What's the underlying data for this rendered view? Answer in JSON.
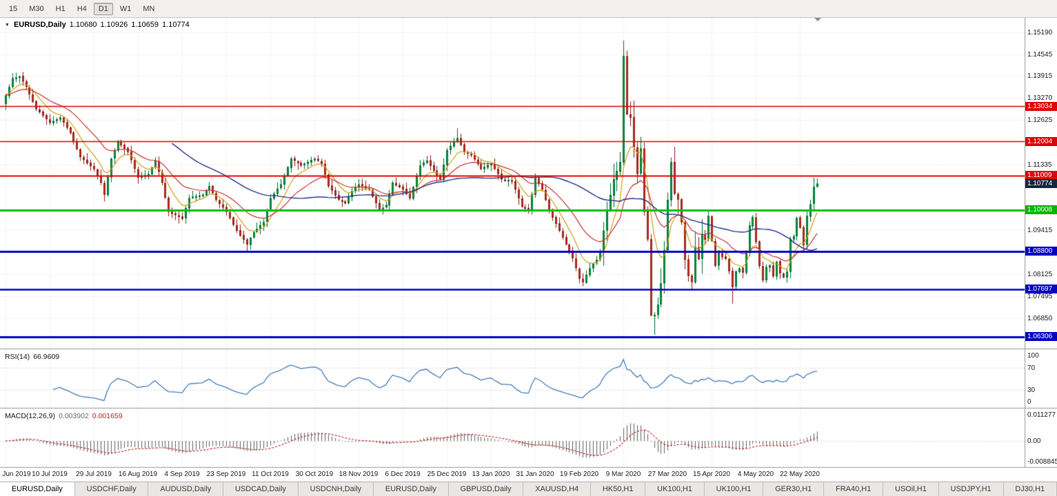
{
  "toolbar": {
    "timeframes": [
      {
        "label": "15",
        "active": false
      },
      {
        "label": "M30",
        "active": false
      },
      {
        "label": "H1",
        "active": false
      },
      {
        "label": "H4",
        "active": false
      },
      {
        "label": "D1",
        "active": true
      },
      {
        "label": "W1",
        "active": false
      },
      {
        "label": "MN",
        "active": false
      }
    ]
  },
  "main_chart": {
    "title": {
      "symbol": "EURUSD,Daily",
      "open": "1.10680",
      "high": "1.10926",
      "low": "1.10659",
      "close": "1.10774"
    },
    "price_axis_labels": [
      "1.15190",
      "1.14545",
      "1.13915",
      "1.13270",
      "1.12625",
      "1.11335",
      "1.09415",
      "1.08125",
      "1.07495",
      "1.06850"
    ],
    "price_badges": [
      {
        "text": "1.13034",
        "price": 1.13034,
        "color": "#e00000",
        "kind": "resistance-line"
      },
      {
        "text": "1.12004",
        "price": 1.12004,
        "color": "#e00000",
        "kind": "resistance-line"
      },
      {
        "text": "1.11009",
        "price": 1.11009,
        "color": "#e00000",
        "kind": "resistance-line"
      },
      {
        "text": "1.10774",
        "price": 1.10774,
        "color": "#15283d",
        "kind": "current-price"
      },
      {
        "text": "1.10008",
        "price": 1.10008,
        "color": "#00b400",
        "kind": "support-line"
      },
      {
        "text": "1.08800",
        "price": 1.088,
        "color": "#0000c0",
        "kind": "support-line"
      },
      {
        "text": "1.07697",
        "price": 1.07697,
        "color": "#0000c0",
        "kind": "support-line"
      },
      {
        "text": "1.06306",
        "price": 1.06306,
        "color": "#0000c0",
        "kind": "support-line"
      }
    ]
  },
  "rsi_panel": {
    "label": "RSI(14)",
    "value": "66.9609",
    "line_color": "#4a7fbb",
    "axis_labels": [
      {
        "text": "100",
        "v": 100
      },
      {
        "text": "70",
        "v": 70
      },
      {
        "text": "30",
        "v": 30
      },
      {
        "text": "0",
        "v": 0
      }
    ],
    "guide_levels": [
      70,
      30
    ]
  },
  "macd_panel": {
    "label": "MACD(12,26,9)",
    "macd_value": "0.003902",
    "signal_value": "0.001659",
    "histogram_color": "#666666",
    "signal_color": "#c22222",
    "axis_labels": [
      {
        "text": "0.011277",
        "v": 0.011277
      },
      {
        "text": "0.00",
        "v": 0
      },
      {
        "text": "-0.008845",
        "v": -0.008845
      }
    ]
  },
  "date_axis": {
    "bars_per_tick": 13,
    "ticks": [
      "21 Jun 2019",
      "10 Jul 2019",
      "29 Jul 2019",
      "16 Aug 2019",
      "4 Sep 2019",
      "23 Sep 2019",
      "11 Oct 2019",
      "30 Oct 2019",
      "18 Nov 2019",
      "6 Dec 2019",
      "25 Dec 2019",
      "13 Jan 2020",
      "31 Jan 2020",
      "19 Feb 2020",
      "9 Mar 2020",
      "27 Mar 2020",
      "15 Apr 2020",
      "4 May 2020",
      "22 May 2020"
    ]
  },
  "tabbar": {
    "tabs": [
      {
        "label": "EURUSD,Daily",
        "active": true
      },
      {
        "label": "USDCHF,Daily",
        "active": false
      },
      {
        "label": "AUDUSD,Daily",
        "active": false
      },
      {
        "label": "USDCAD,Daily",
        "active": false
      },
      {
        "label": "USDCNH,Daily",
        "active": false
      },
      {
        "label": "EURUSD,Daily",
        "active": false
      },
      {
        "label": "GBPUSD,Daily",
        "active": false
      },
      {
        "label": "XAUUSD,H4",
        "active": false
      },
      {
        "label": "HK50,H1",
        "active": false
      },
      {
        "label": "UK100,H1",
        "active": false
      },
      {
        "label": "UK100,H1",
        "active": false
      },
      {
        "label": "GER30,H1",
        "active": false
      },
      {
        "label": "FRA40,H1",
        "active": false
      },
      {
        "label": "USOil,H1",
        "active": false
      },
      {
        "label": "USDJPY,H1",
        "active": false
      },
      {
        "label": "DJ30,H1",
        "active": false
      }
    ]
  },
  "chart_data": {
    "type": "candlestick",
    "symbol": "EURUSD",
    "timeframe": "Daily",
    "bars": 240,
    "seed": 20200529,
    "date_range": [
      "21 Jun 2019",
      "29 May 2020"
    ],
    "price_axis": {
      "max": 1.1553,
      "min": 1.06
    },
    "last_bar": {
      "open": 1.1068,
      "high": 1.10926,
      "low": 1.10659,
      "close": 1.10774
    },
    "horizontal_lines": [
      {
        "price": 1.13034,
        "color": "#e00000",
        "width": 1.5
      },
      {
        "price": 1.12004,
        "color": "#e00000",
        "width": 1.5
      },
      {
        "price": 1.11009,
        "color": "#e00000",
        "width": 2
      },
      {
        "price": 1.10008,
        "color": "#00c000",
        "width": 3
      },
      {
        "price": 1.088,
        "color": "#0000c8",
        "width": 3
      },
      {
        "price": 1.07697,
        "color": "#0000c8",
        "width": 2.5
      },
      {
        "price": 1.06306,
        "color": "#0000c8",
        "width": 3
      }
    ],
    "colors": {
      "bull": "#00a94f",
      "bull_border": "#00702f",
      "bear": "#e23a2e",
      "bear_border": "#8e1f17",
      "background": "#ffffff",
      "grid": "#dcdcdc"
    },
    "moving_averages": [
      {
        "type": "ema",
        "period": 8,
        "color": "#d4a017",
        "width": 1.2
      },
      {
        "type": "ema",
        "period": 21,
        "color": "#cc3333",
        "width": 1.2
      },
      {
        "type": "sma",
        "period": 50,
        "color": "#26318c",
        "width": 1.4
      }
    ],
    "indicators": [
      {
        "name": "RSI",
        "period": 14,
        "last_value": 66.9609
      },
      {
        "name": "MACD",
        "fast": 12,
        "slow": 26,
        "signal": 9,
        "last_macd": 0.003902,
        "last_signal": 0.001659
      }
    ],
    "close_path_anchors": [
      [
        0,
        1.1335
      ],
      [
        2,
        1.1385
      ],
      [
        4,
        1.139
      ],
      [
        6,
        1.136
      ],
      [
        9,
        1.1295
      ],
      [
        13,
        1.1255
      ],
      [
        16,
        1.127
      ],
      [
        19,
        1.1225
      ],
      [
        22,
        1.1155
      ],
      [
        26,
        1.112
      ],
      [
        28,
        1.108
      ],
      [
        29,
        1.1045
      ],
      [
        31,
        1.115
      ],
      [
        33,
        1.12
      ],
      [
        36,
        1.117
      ],
      [
        39,
        1.1095
      ],
      [
        42,
        1.1105
      ],
      [
        44,
        1.1145
      ],
      [
        46,
        1.108
      ],
      [
        48,
        1.0995
      ],
      [
        52,
        1.0975
      ],
      [
        54,
        1.1035
      ],
      [
        58,
        1.1045
      ],
      [
        60,
        1.107
      ],
      [
        62,
        1.103
      ],
      [
        65,
        1.0995
      ],
      [
        68,
        1.094
      ],
      [
        71,
        1.09
      ],
      [
        73,
        1.0935
      ],
      [
        76,
        1.0965
      ],
      [
        78,
        1.1035
      ],
      [
        81,
        1.1075
      ],
      [
        84,
        1.115
      ],
      [
        87,
        1.113
      ],
      [
        91,
        1.115
      ],
      [
        93,
        1.1135
      ],
      [
        95,
        1.107
      ],
      [
        98,
        1.103
      ],
      [
        100,
        1.102
      ],
      [
        102,
        1.1055
      ],
      [
        104,
        1.1075
      ],
      [
        107,
        1.106
      ],
      [
        110,
        1.1
      ],
      [
        112,
        1.1015
      ],
      [
        114,
        1.108
      ],
      [
        117,
        1.106
      ],
      [
        119,
        1.1035
      ],
      [
        122,
        1.113
      ],
      [
        124,
        1.1145
      ],
      [
        126,
        1.1115
      ],
      [
        128,
        1.109
      ],
      [
        130,
        1.1175
      ],
      [
        133,
        1.121
      ],
      [
        135,
        1.117
      ],
      [
        137,
        1.116
      ],
      [
        140,
        1.112
      ],
      [
        143,
        1.1135
      ],
      [
        146,
        1.109
      ],
      [
        149,
        1.1085
      ],
      [
        152,
        1.101
      ],
      [
        154,
        1.1
      ],
      [
        156,
        1.1093
      ],
      [
        158,
        1.106
      ],
      [
        160,
        1.1
      ],
      [
        162,
        1.096
      ],
      [
        165,
        1.09
      ],
      [
        167,
        1.086
      ],
      [
        169,
        1.08
      ],
      [
        170,
        1.079
      ],
      [
        172,
        1.083
      ],
      [
        174,
        1.0855
      ],
      [
        175,
        1.088
      ],
      [
        177,
        1.1
      ],
      [
        179,
        1.109
      ],
      [
        181,
        1.114
      ],
      [
        182,
        1.145
      ],
      [
        183,
        1.128
      ],
      [
        184,
        1.127
      ],
      [
        185,
        1.1184
      ],
      [
        186,
        1.1106
      ],
      [
        187,
        1.118
      ],
      [
        188,
        1.0995
      ],
      [
        189,
        1.0915
      ],
      [
        190,
        1.0692
      ],
      [
        191,
        1.0694
      ],
      [
        192,
        1.0724
      ],
      [
        193,
        1.0786
      ],
      [
        194,
        1.0883
      ],
      [
        195,
        1.103
      ],
      [
        196,
        1.114
      ],
      [
        197,
        1.1048
      ],
      [
        198,
        1.1031
      ],
      [
        199,
        1.0965
      ],
      [
        200,
        1.0855
      ],
      [
        201,
        1.0808
      ],
      [
        202,
        1.079
      ],
      [
        203,
        1.0893
      ],
      [
        204,
        1.0857
      ],
      [
        205,
        1.093
      ],
      [
        206,
        1.0914
      ],
      [
        207,
        1.0983
      ],
      [
        208,
        1.0911
      ],
      [
        209,
        1.0838
      ],
      [
        210,
        1.0875
      ],
      [
        211,
        1.0863
      ],
      [
        212,
        1.0858
      ],
      [
        213,
        1.0822
      ],
      [
        214,
        1.0776
      ],
      [
        215,
        1.0821
      ],
      [
        216,
        1.083
      ],
      [
        217,
        1.0818
      ],
      [
        218,
        1.0875
      ],
      [
        219,
        1.0955
      ],
      [
        220,
        1.098
      ],
      [
        221,
        1.0907
      ],
      [
        222,
        1.0837
      ],
      [
        223,
        1.0795
      ],
      [
        224,
        1.0834
      ],
      [
        225,
        1.0839
      ],
      [
        226,
        1.0807
      ],
      [
        227,
        1.0849
      ],
      [
        228,
        1.0816
      ],
      [
        229,
        1.0804
      ],
      [
        230,
        1.082
      ],
      [
        231,
        1.0915
      ],
      [
        232,
        1.0924
      ],
      [
        233,
        1.0977
      ],
      [
        234,
        1.0949
      ],
      [
        235,
        1.0898
      ],
      [
        236,
        1.0983
      ],
      [
        237,
        1.1017
      ],
      [
        238,
        1.1068
      ],
      [
        239,
        1.10774
      ]
    ],
    "bar_overrides": {
      "2": {
        "h": 1.14
      },
      "29": {
        "l": 1.1025
      },
      "71": {
        "l": 1.0878
      },
      "133": {
        "h": 1.1239
      },
      "170": {
        "l": 1.0778
      },
      "182": {
        "h": 1.1495
      },
      "190": {
        "l": 1.077
      },
      "191": {
        "l": 1.0636
      },
      "214": {
        "l": 1.0727
      },
      "238": {
        "h": 1.1095
      },
      "239": {
        "o": 1.1068,
        "h": 1.10926,
        "l": 1.10659,
        "c": 1.10774
      }
    }
  }
}
